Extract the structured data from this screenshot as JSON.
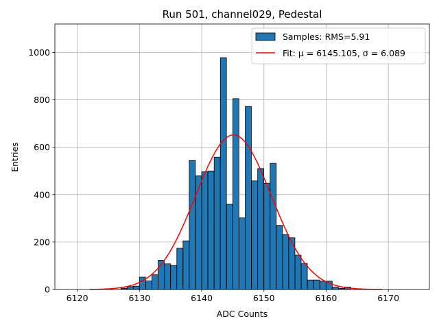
{
  "chart_data": {
    "type": "bar",
    "title": "Run 501, channel029, Pedestal",
    "xlabel": "ADC Counts",
    "ylabel": "Entries",
    "xlim": [
      6116.4,
      6176.6
    ],
    "ylim": [
      0,
      1120
    ],
    "xticks": [
      6120,
      6130,
      6140,
      6150,
      6160,
      6170
    ],
    "yticks": [
      0,
      200,
      400,
      600,
      800,
      1000
    ],
    "grid": true,
    "legend_position": "top-right",
    "histogram": {
      "name": "Samples: RMS=5.91",
      "color": "#1f77b4",
      "edgecolor": "#000000",
      "bin_width": 0.98,
      "bin_starts": [
        6127.0,
        6128.0,
        6129.0,
        6130.0,
        6131.0,
        6132.0,
        6133.0,
        6134.0,
        6135.0,
        6136.0,
        6137.0,
        6138.0,
        6139.0,
        6140.0,
        6141.0,
        6142.0,
        6143.0,
        6144.0,
        6145.0,
        6146.0,
        6147.0,
        6148.0,
        6149.0,
        6150.0,
        6151.0,
        6152.0,
        6153.0,
        6154.0,
        6155.0,
        6156.0,
        6157.0,
        6158.0,
        6159.0,
        6160.0,
        6161.0,
        6162.0,
        6163.0
      ],
      "counts": [
        5,
        12,
        14,
        52,
        36,
        62,
        123,
        108,
        102,
        174,
        205,
        545,
        480,
        497,
        500,
        558,
        978,
        360,
        805,
        302,
        772,
        458,
        510,
        448,
        532,
        270,
        232,
        218,
        145,
        110,
        40,
        40,
        35,
        35,
        10,
        5,
        10
      ]
    },
    "fit": {
      "name": "Fit: μ = 6145.105, σ = 6.089",
      "color": "#ff0000",
      "mu": 6145.105,
      "sigma": 6.089,
      "amplitude": 652,
      "x_range": [
        6122,
        6169
      ]
    }
  }
}
